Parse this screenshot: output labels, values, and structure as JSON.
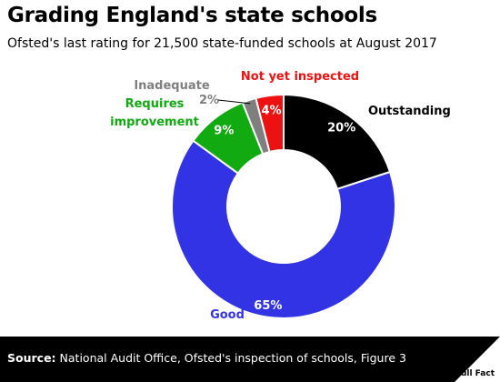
{
  "header": {
    "title": "Grading England's state schools",
    "subtitle": "Ofsted's last rating for 21,500 state-funded schools at August 2017"
  },
  "footer": {
    "source_label": "Source:",
    "source_text": "National Audit Office, Ofsted's inspection of schools, Figure 3",
    "brand": "Full Fact"
  },
  "chart_data": {
    "type": "pie",
    "variant": "donut",
    "title": "Grading England's state schools",
    "subtitle": "Ofsted's last rating for 21,500 state-funded schools at August 2017",
    "unit": "%",
    "slices": [
      {
        "label": "Outstanding",
        "value": 20,
        "value_label": "20%",
        "color": "#000000",
        "label_color": "#000000",
        "value_color": "#ffffff"
      },
      {
        "label": "Good",
        "value": 65,
        "value_label": "65%",
        "color": "#3333e6",
        "label_color": "#3333e6",
        "value_color": "#ffffff"
      },
      {
        "label": "Requires improvement",
        "value": 9,
        "value_label": "9%",
        "color": "#11aa11",
        "label_color": "#11aa11",
        "value_color": "#ffffff"
      },
      {
        "label": "Inadequate",
        "value": 2,
        "value_label": "2%",
        "color": "#7f7f7f",
        "label_color": "#7f7f7f",
        "value_color": "#7f7f7f"
      },
      {
        "label": "Not yet inspected",
        "value": 4,
        "value_label": "4%",
        "color": "#ee1111",
        "label_color": "#ee1111",
        "value_color": "#ffffff"
      }
    ]
  }
}
